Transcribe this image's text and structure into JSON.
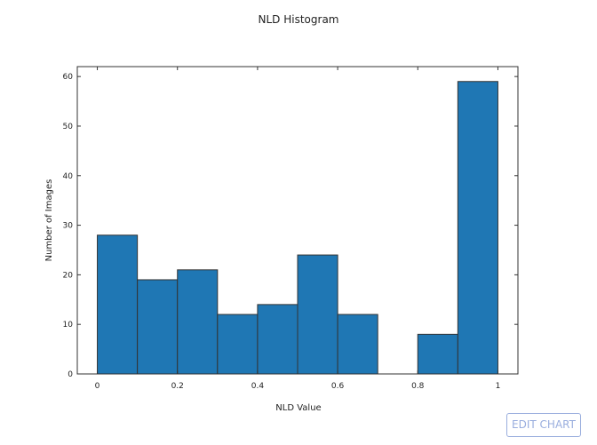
{
  "chart_data": {
    "type": "bar",
    "title": "NLD Histogram",
    "xlabel": "NLD Value",
    "ylabel": "Number of Images",
    "bin_width": 0.1,
    "x": [
      0.05,
      0.15,
      0.25,
      0.35,
      0.45,
      0.55,
      0.65,
      0.75,
      0.85,
      0.95
    ],
    "values": [
      28,
      19,
      21,
      12,
      14,
      24,
      12,
      0,
      8,
      59
    ],
    "xlim": [
      -0.05,
      1.05
    ],
    "ylim": [
      0,
      62
    ],
    "x_ticks": [
      0,
      0.2,
      0.4,
      0.6,
      0.8,
      1
    ],
    "x_tick_labels": [
      "0",
      "0.2",
      "0.4",
      "0.6",
      "0.8",
      "1"
    ],
    "y_ticks": [
      0,
      10,
      20,
      30,
      40,
      50,
      60
    ],
    "y_tick_labels": [
      "0",
      "10",
      "20",
      "30",
      "40",
      "50",
      "60"
    ],
    "grid": false,
    "bar_color": "#1f77b4",
    "bar_edge_color": "#333333"
  },
  "ui": {
    "edit_chart_label": "EDIT CHART",
    "edit_button_color": "#9aaede"
  }
}
